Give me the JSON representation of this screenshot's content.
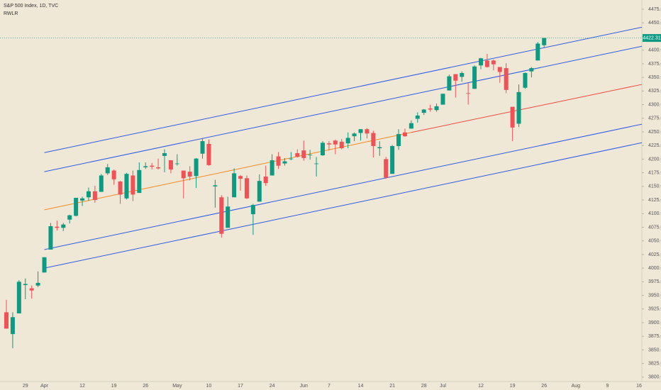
{
  "chart_data": {
    "type": "candlestick",
    "title": "S&P 500 Index, 1D, TVC",
    "subtitle": "RWLR",
    "up_color": "#0c9a83",
    "down_color": "#ef5157",
    "categories": [
      null,
      null,
      null,
      "29",
      null,
      null,
      "Apr",
      null,
      null,
      null,
      null,
      null,
      "12",
      null,
      null,
      null,
      null,
      "19",
      null,
      null,
      null,
      null,
      "26",
      null,
      null,
      null,
      null,
      "May",
      null,
      null,
      null,
      null,
      "10",
      null,
      null,
      null,
      null,
      "17",
      null,
      null,
      null,
      null,
      "24",
      null,
      null,
      null,
      null,
      "Jun",
      null,
      null,
      null,
      "7",
      null,
      null,
      null,
      null,
      "14",
      null,
      null,
      null,
      null,
      "21",
      null,
      null,
      null,
      null,
      "28",
      null,
      null,
      "Jul",
      null,
      null,
      null,
      null,
      null,
      "12",
      null,
      null,
      null,
      null,
      "19",
      null,
      null,
      null,
      null,
      "26",
      null,
      null,
      null,
      null,
      "Aug",
      null,
      null,
      null,
      null,
      "9",
      null,
      null,
      null,
      null,
      "16"
    ],
    "open": [
      3919,
      3879,
      3917,
      3969,
      3963,
      3968,
      3992,
      4034,
      4076,
      4074,
      4089,
      4096,
      4124,
      4130,
      4141,
      4140,
      4174,
      4179,
      4159,
      4128,
      4170,
      4138,
      4185,
      4188,
      4185,
      4206,
      4198,
      4191,
      4179,
      4177,
      4169,
      4210,
      4228,
      4150,
      4130,
      4074,
      4130,
      4169,
      4165,
      4099,
      4122,
      4168,
      4170,
      4205,
      4192,
      4201,
      4211,
      4216,
      4207,
      4191,
      4207,
      4229,
      4234,
      4232,
      4229,
      4242,
      4248,
      4255,
      4248,
      4220,
      4200,
      4173,
      4224,
      4249,
      4256,
      4274,
      4285,
      4293,
      4290,
      4300,
      4326,
      4356,
      4351,
      4321,
      4329,
      4372,
      4381,
      4381,
      4369,
      4367,
      4296,
      4265,
      4331,
      4361,
      4381,
      4409,
      null,
      null,
      null,
      null,
      null,
      null,
      null,
      null,
      null,
      null,
      null,
      null,
      null,
      null,
      null
    ],
    "high": [
      3942,
      3919,
      3978,
      3981,
      3968,
      3994,
      4020,
      4083,
      4087,
      4083,
      4098,
      4129,
      4131,
      4148,
      4151,
      4173,
      4191,
      4181,
      4160,
      4175,
      4179,
      4194,
      4194,
      4193,
      4201,
      4218,
      4198,
      4209,
      4179,
      4187,
      4202,
      4238,
      4236,
      4162,
      4134,
      4131,
      4183,
      4171,
      4170,
      4118,
      4172,
      4188,
      4209,
      4213,
      4202,
      4213,
      4218,
      4234,
      4217,
      4204,
      4233,
      4233,
      4236,
      4237,
      4249,
      4249,
      4255,
      4257,
      4252,
      4233,
      4204,
      4226,
      4255,
      4256,
      4271,
      4286,
      4292,
      4300,
      4302,
      4320,
      4355,
      4356,
      4361,
      4340,
      4372,
      4386,
      4393,
      4383,
      4369,
      4376,
      4296,
      4337,
      4359,
      4369,
      4415,
      4422.31,
      null,
      null,
      null,
      null,
      null,
      null,
      null,
      null,
      null,
      null,
      null,
      null,
      null,
      null,
      null
    ],
    "low": [
      3889,
      3853,
      3917,
      3943,
      3944,
      3965,
      3992,
      4034,
      4069,
      4068,
      4082,
      4095,
      4114,
      4124,
      4120,
      4140,
      4171,
      4153,
      4118,
      4126,
      4123,
      4138,
      4182,
      4181,
      4181,
      4176,
      4174,
      4188,
      4128,
      4161,
      4147,
      4201,
      4188,
      4111,
      4056,
      4074,
      4130,
      4142,
      4127,
      4061,
      4122,
      4151,
      4170,
      4182,
      4188,
      4198,
      4203,
      4197,
      4199,
      4168,
      4206,
      4216,
      4209,
      4218,
      4220,
      4233,
      4234,
      4238,
      4203,
      4206,
      4164,
      4173,
      4217,
      4241,
      4256,
      4267,
      4281,
      4287,
      4287,
      4300,
      4326,
      4313,
      4342,
      4300,
      4329,
      4365,
      4368,
      4363,
      4340,
      4321,
      4233,
      4259,
      4329,
      4350,
      4381,
      4405,
      null,
      null,
      null,
      null,
      null,
      null,
      null,
      null,
      null,
      null,
      null,
      null,
      null,
      null,
      null
    ],
    "close": [
      3889,
      3910,
      3975,
      3971,
      3959,
      3973,
      4020,
      4077,
      4074,
      4080,
      4097,
      4129,
      4128,
      4141,
      4125,
      4170,
      4185,
      4163,
      4135,
      4173,
      4135,
      4180,
      4187,
      4186,
      4183,
      4211,
      4181,
      4192,
      4165,
      4168,
      4201,
      4233,
      4189,
      4152,
      4063,
      4113,
      4174,
      4164,
      4128,
      4116,
      4160,
      4156,
      4198,
      4188,
      4196,
      4201,
      4204,
      4202,
      4208,
      4192,
      4230,
      4227,
      4227,
      4220,
      4239,
      4247,
      4255,
      4247,
      4224,
      4222,
      4166,
      4224,
      4246,
      4242,
      4266,
      4280,
      4291,
      4291,
      4297,
      4320,
      4352,
      4344,
      4358,
      4320,
      4370,
      4385,
      4369,
      4374,
      4360,
      4327,
      4258,
      4323,
      4358,
      4367,
      4412,
      4422.31,
      null,
      null,
      null,
      null,
      null,
      null,
      null,
      null,
      null,
      null,
      null,
      null,
      null,
      null,
      null
    ],
    "last_price": 4422.31,
    "last_price_color": "#0c9a83",
    "channel_lines": [
      {
        "color": "#2e5be8",
        "x_index": [
          6,
          100
        ],
        "values": [
          4212,
          4441
        ]
      },
      {
        "color": "#2e5be8",
        "x_index": [
          6,
          100
        ],
        "values": [
          4177,
          4406
        ]
      },
      {
        "color": "#f58a1f",
        "x_index": [
          6,
          64
        ],
        "values": [
          4107,
          4249
        ]
      },
      {
        "color": "#ef4a3c",
        "x_index": [
          64,
          100
        ],
        "values": [
          4249,
          4336
        ]
      },
      {
        "color": "#2e5be8",
        "x_index": [
          6,
          100
        ],
        "values": [
          4034,
          4263
        ]
      },
      {
        "color": "#2e5be8",
        "x_index": [
          6,
          100
        ],
        "values": [
          4000,
          4229
        ]
      }
    ],
    "ylim": [
      3792,
      4492
    ],
    "yticks": [
      {
        "value": 3800,
        "label": "3800.00"
      },
      {
        "value": 3825,
        "label": "3825.00"
      },
      {
        "value": 3850,
        "label": "3850.00"
      },
      {
        "value": 3875,
        "label": "3875.00"
      },
      {
        "value": 3900,
        "label": "3900.00"
      },
      {
        "value": 3925,
        "label": "3925.00"
      },
      {
        "value": 3950,
        "label": "3950.00"
      },
      {
        "value": 3975,
        "label": "3975.00"
      },
      {
        "value": 4000,
        "label": "4000.00"
      },
      {
        "value": 4025,
        "label": "4025.00"
      },
      {
        "value": 4050,
        "label": "4050.00"
      },
      {
        "value": 4075,
        "label": "4075.00"
      },
      {
        "value": 4100,
        "label": "4100.00"
      },
      {
        "value": 4125,
        "label": "4125.00"
      },
      {
        "value": 4150,
        "label": "4150.00"
      },
      {
        "value": 4175,
        "label": "4175.00"
      },
      {
        "value": 4200,
        "label": "4200.00"
      },
      {
        "value": 4225,
        "label": "4225.00"
      },
      {
        "value": 4250,
        "label": "4250.00"
      },
      {
        "value": 4275,
        "label": "4275.00"
      },
      {
        "value": 4300,
        "label": "4300.00"
      },
      {
        "value": 4325,
        "label": "4325.00"
      },
      {
        "value": 4350,
        "label": "4350.00"
      },
      {
        "value": 4375,
        "label": "4375.00"
      },
      {
        "value": 4400,
        "label": "4400.00"
      },
      {
        "value": 4425,
        "label": "4425.00"
      },
      {
        "value": 4450,
        "label": "4450.00"
      },
      {
        "value": 4475,
        "label": "4475.00"
      }
    ]
  }
}
